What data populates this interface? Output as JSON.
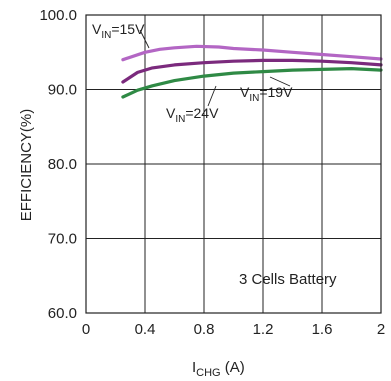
{
  "chart_data": {
    "type": "line",
    "xlabel_main": "I",
    "xlabel_sub": "CHG",
    "xlabel_unit": " (A)",
    "ylabel": "EFFICIENCY(%)",
    "xlim": [
      0,
      2
    ],
    "ylim": [
      60,
      100
    ],
    "xticks": [
      "0",
      "0.4",
      "0.8",
      "1.2",
      "1.6",
      "2"
    ],
    "xtick_values": [
      0,
      0.4,
      0.8,
      1.2,
      1.6,
      2
    ],
    "yticks": [
      "60.0",
      "70.0",
      "80.0",
      "90.0",
      "100.0"
    ],
    "ytick_values": [
      60,
      70,
      80,
      90,
      100
    ],
    "grid": true,
    "box_label": "3 Cells Battery",
    "series": [
      {
        "name_main": "V",
        "name_sub": "IN",
        "name_rest": "=15V",
        "color": "#b366c4",
        "x": [
          0.25,
          0.4,
          0.5,
          0.6,
          0.75,
          0.9,
          1.0,
          1.2,
          1.4,
          1.6,
          1.8,
          2.0
        ],
        "y": [
          94.0,
          95.0,
          95.4,
          95.6,
          95.8,
          95.7,
          95.5,
          95.3,
          95.0,
          94.7,
          94.4,
          94.1
        ]
      },
      {
        "name_main": "V",
        "name_sub": "IN",
        "name_rest": "=19V",
        "color": "#7b2a7d",
        "x": [
          0.25,
          0.35,
          0.45,
          0.6,
          0.8,
          1.0,
          1.2,
          1.4,
          1.6,
          1.8,
          2.0
        ],
        "y": [
          91.0,
          92.3,
          92.9,
          93.3,
          93.6,
          93.8,
          93.9,
          93.9,
          93.8,
          93.6,
          93.3
        ]
      },
      {
        "name_main": "V",
        "name_sub": "IN",
        "name_rest": "=24V",
        "color": "#2f8a45",
        "x": [
          0.25,
          0.35,
          0.45,
          0.6,
          0.8,
          1.0,
          1.2,
          1.4,
          1.6,
          1.8,
          2.0
        ],
        "y": [
          89.0,
          89.9,
          90.5,
          91.2,
          91.8,
          92.2,
          92.4,
          92.6,
          92.7,
          92.8,
          92.6
        ]
      }
    ]
  }
}
